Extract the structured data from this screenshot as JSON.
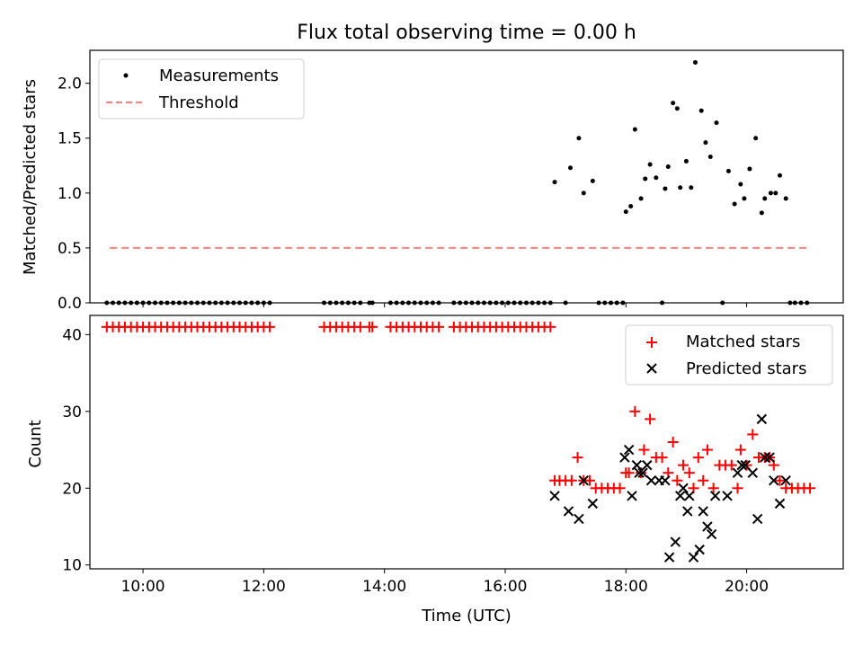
{
  "chart_data": [
    {
      "type": "scatter",
      "title": "Flux total observing time = 0.00 h",
      "xlabel": "",
      "ylabel": "Matched/Predicted stars",
      "xlim": [
        9.12,
        21.6
      ],
      "ylim": [
        0,
        2.3
      ],
      "yticks": [
        0.0,
        0.5,
        1.0,
        1.5,
        2.0
      ],
      "ytick_labels": [
        "0.0",
        "0.5",
        "1.0",
        "1.5",
        "2.0"
      ],
      "xticks": [
        10,
        12,
        14,
        16,
        18,
        20
      ],
      "legend": {
        "position": "top-left",
        "entries": [
          "Measurements",
          "Threshold"
        ]
      },
      "series": [
        {
          "name": "Measurements",
          "color": "#000000",
          "marker": "dot",
          "x": [
            9.4,
            9.5,
            9.6,
            9.7,
            9.8,
            9.9,
            10.0,
            10.1,
            10.2,
            10.3,
            10.4,
            10.5,
            10.6,
            10.7,
            10.8,
            10.9,
            11.0,
            11.1,
            11.2,
            11.3,
            11.4,
            11.5,
            11.6,
            11.7,
            11.8,
            11.9,
            12.0,
            12.1,
            13.0,
            13.1,
            13.2,
            13.3,
            13.4,
            13.5,
            13.6,
            13.75,
            13.8,
            14.1,
            14.2,
            14.3,
            14.4,
            14.5,
            14.6,
            14.7,
            14.8,
            14.9,
            15.15,
            15.25,
            15.35,
            15.45,
            15.55,
            15.65,
            15.75,
            15.85,
            15.95,
            16.05,
            16.15,
            16.25,
            16.35,
            16.45,
            16.55,
            16.65,
            16.75,
            16.82,
            17.0,
            17.08,
            17.22,
            17.3,
            17.45,
            17.55,
            17.65,
            17.75,
            17.85,
            17.95,
            18.0,
            18.08,
            18.15,
            18.25,
            18.32,
            18.4,
            18.5,
            18.6,
            18.65,
            18.7,
            18.78,
            18.85,
            18.9,
            19.0,
            19.08,
            19.15,
            19.25,
            19.32,
            19.4,
            19.5,
            19.6,
            19.7,
            19.8,
            19.9,
            19.96,
            20.05,
            20.15,
            20.25,
            20.3,
            20.4,
            20.48,
            20.55,
            20.65,
            20.72,
            20.8,
            20.9,
            21.0
          ],
          "y": [
            0,
            0,
            0,
            0,
            0,
            0,
            0,
            0,
            0,
            0,
            0,
            0,
            0,
            0,
            0,
            0,
            0,
            0,
            0,
            0,
            0,
            0,
            0,
            0,
            0,
            0,
            0,
            0,
            0,
            0,
            0,
            0,
            0,
            0,
            0,
            0,
            0,
            0,
            0,
            0,
            0,
            0,
            0,
            0,
            0,
            0,
            0,
            0,
            0,
            0,
            0,
            0,
            0,
            0,
            0,
            0,
            0,
            0,
            0,
            0,
            0,
            0,
            0,
            1.1,
            0,
            1.23,
            1.5,
            1.0,
            1.11,
            0,
            0,
            0,
            0,
            0,
            0.83,
            0.88,
            1.58,
            0.95,
            1.13,
            1.26,
            1.14,
            0,
            1.04,
            1.24,
            1.82,
            1.77,
            1.05,
            1.29,
            1.05,
            2.19,
            1.75,
            1.46,
            1.33,
            1.64,
            0,
            1.2,
            0.9,
            1.08,
            0.95,
            1.22,
            1.5,
            0.82,
            0.95,
            1.0,
            1.0,
            1.16,
            0.95,
            0,
            0,
            0,
            0
          ]
        },
        {
          "name": "Threshold",
          "color": "#ff7f7f",
          "line_style": "dashed",
          "x": [
            9.45,
            21.0
          ],
          "y": [
            0.5,
            0.5
          ]
        }
      ]
    },
    {
      "type": "scatter",
      "title": "",
      "xlabel": "Time (UTC)",
      "ylabel": "Count",
      "xlim": [
        9.12,
        21.6
      ],
      "ylim": [
        9.5,
        42.5
      ],
      "yticks": [
        10,
        20,
        30,
        40
      ],
      "ytick_labels": [
        "10",
        "20",
        "30",
        "40"
      ],
      "xticks": [
        10,
        12,
        14,
        16,
        18,
        20
      ],
      "xtick_labels": [
        "10:00",
        "12:00",
        "14:00",
        "16:00",
        "18:00",
        "20:00"
      ],
      "legend": {
        "position": "top-right",
        "entries": [
          "Matched stars",
          "Predicted stars"
        ]
      },
      "series": [
        {
          "name": "Matched stars",
          "color": "#ff0000",
          "marker": "plus",
          "x": [
            9.4,
            9.5,
            9.6,
            9.7,
            9.8,
            9.9,
            10.0,
            10.1,
            10.2,
            10.3,
            10.4,
            10.5,
            10.6,
            10.7,
            10.8,
            10.9,
            11.0,
            11.1,
            11.2,
            11.3,
            11.4,
            11.5,
            11.6,
            11.7,
            11.8,
            11.9,
            12.0,
            12.1,
            13.0,
            13.1,
            13.2,
            13.3,
            13.4,
            13.5,
            13.6,
            13.75,
            13.8,
            14.1,
            14.2,
            14.3,
            14.4,
            14.5,
            14.6,
            14.7,
            14.8,
            14.9,
            15.15,
            15.25,
            15.35,
            15.45,
            15.55,
            15.65,
            15.75,
            15.85,
            15.95,
            16.05,
            16.15,
            16.25,
            16.35,
            16.45,
            16.55,
            16.65,
            16.75,
            16.82,
            16.9,
            17.0,
            17.1,
            17.2,
            17.3,
            17.4,
            17.5,
            17.6,
            17.7,
            17.8,
            17.9,
            18.0,
            18.05,
            18.15,
            18.25,
            18.3,
            18.4,
            18.5,
            18.6,
            18.7,
            18.78,
            18.85,
            18.95,
            19.05,
            19.12,
            19.2,
            19.28,
            19.35,
            19.45,
            19.55,
            19.65,
            19.75,
            19.85,
            19.9,
            20.0,
            20.1,
            20.2,
            20.3,
            20.38,
            20.45,
            20.55,
            20.65,
            20.75,
            20.85,
            20.95,
            21.05
          ],
          "y": [
            41,
            41,
            41,
            41,
            41,
            41,
            41,
            41,
            41,
            41,
            41,
            41,
            41,
            41,
            41,
            41,
            41,
            41,
            41,
            41,
            41,
            41,
            41,
            41,
            41,
            41,
            41,
            41,
            41,
            41,
            41,
            41,
            41,
            41,
            41,
            41,
            41,
            41,
            41,
            41,
            41,
            41,
            41,
            41,
            41,
            41,
            41,
            41,
            41,
            41,
            41,
            41,
            41,
            41,
            41,
            41,
            41,
            41,
            41,
            41,
            41,
            41,
            41,
            21,
            21,
            21,
            21,
            24,
            21,
            21,
            20,
            20,
            20,
            20,
            20,
            22,
            22,
            30,
            22,
            25,
            29,
            24,
            24,
            22,
            26,
            21,
            23,
            22,
            20,
            24,
            21,
            25,
            20,
            23,
            23,
            23,
            20,
            25,
            23,
            27,
            24,
            24,
            24,
            23,
            21,
            20,
            20,
            20,
            20,
            20
          ]
        },
        {
          "name": "Predicted stars",
          "color": "#000000",
          "marker": "cross",
          "x": [
            16.82,
            17.05,
            17.22,
            17.3,
            17.45,
            17.98,
            18.05,
            18.1,
            18.18,
            18.22,
            18.28,
            18.35,
            18.42,
            18.55,
            18.65,
            18.72,
            18.82,
            18.9,
            18.95,
            19.02,
            19.05,
            19.12,
            19.22,
            19.28,
            19.35,
            19.42,
            19.48,
            19.68,
            19.85,
            19.92,
            19.98,
            20.1,
            20.18,
            20.25,
            20.3,
            20.38,
            20.45,
            20.55,
            20.65
          ],
          "y": [
            19,
            17,
            16,
            21,
            18,
            24,
            25,
            19,
            23,
            22,
            22,
            23,
            21,
            21,
            21,
            11,
            13,
            19,
            20,
            17,
            19,
            11,
            12,
            17,
            15,
            14,
            19,
            19,
            22,
            23,
            23,
            22,
            16,
            29,
            24,
            24,
            21,
            18,
            21
          ]
        }
      ]
    }
  ]
}
